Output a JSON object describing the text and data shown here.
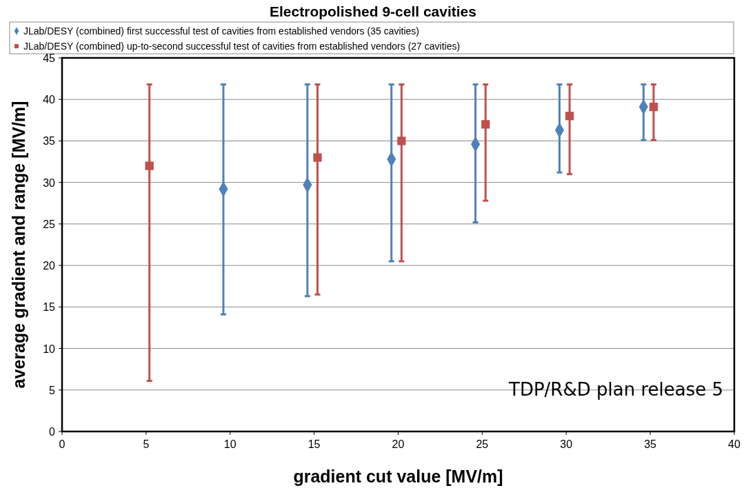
{
  "chart_data": {
    "type": "scatter",
    "title": "Electropolished 9-cell cavities",
    "xlabel": "gradient cut value [MV/m]",
    "ylabel": "average gradient and range [MV/m]",
    "annotations": [
      "TDP/R&D plan release 5"
    ],
    "series": [
      {
        "name": "JLab/DESY (combined) first successful test of cavities from established vendors (35 cavities)",
        "color": "#4f81bd",
        "marker": "diamond",
        "x": [
          9.6,
          14.6,
          19.6,
          24.6,
          29.6,
          34.6
        ],
        "values": [
          29.2,
          29.7,
          32.8,
          34.6,
          36.3,
          39.1
        ],
        "errors": [
          [
            14.1,
            41.8
          ],
          [
            16.3,
            41.8
          ],
          [
            20.5,
            41.8
          ],
          [
            25.2,
            41.8
          ],
          [
            31.2,
            41.8
          ],
          [
            35.1,
            41.8
          ]
        ]
      },
      {
        "name": "JLab/DESY (combined) up-to-second successful test of cavities from established vendors (27 cavities)",
        "color": "#c0504d",
        "marker": "square",
        "x": [
          5.2,
          15.2,
          20.2,
          25.2,
          30.2,
          35.2
        ],
        "values": [
          32.0,
          33.0,
          35.0,
          37.0,
          38.0,
          39.1
        ],
        "errors": [
          [
            6.1,
            41.8
          ],
          [
            16.5,
            41.8
          ],
          [
            20.5,
            41.8
          ],
          [
            27.8,
            41.8
          ],
          [
            31.0,
            41.8
          ],
          [
            35.1,
            41.8
          ]
        ]
      }
    ],
    "xlim": [
      0,
      40
    ],
    "xticks": [
      0,
      5,
      10,
      15,
      20,
      25,
      30,
      35,
      40
    ],
    "ylim": [
      0,
      45
    ],
    "yticks": [
      0,
      5,
      10,
      15,
      20,
      25,
      30,
      35,
      40,
      45
    ],
    "grid": "y",
    "legend": "top"
  }
}
